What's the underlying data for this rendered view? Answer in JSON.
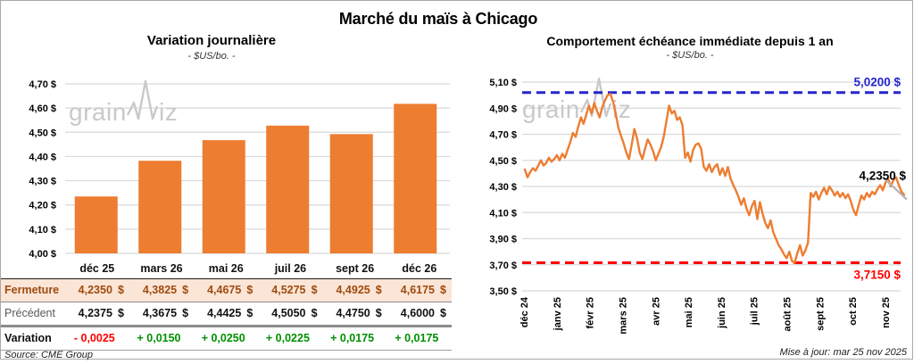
{
  "title": "Marché du maïs à Chicago",
  "source": "Source: CME Group",
  "updated": "Mise à jour: mar 25 nov 2025",
  "watermark": {
    "part1": "grain",
    "part2": "iz"
  },
  "colors": {
    "bar_orange": "#ED7D31",
    "grid": "#DADADA",
    "high_blue": "#2525CE",
    "low_red": "#FF0000",
    "positive_green": "#009000",
    "negative_red": "#FF0000",
    "close_row_bg": "#FBE5D6",
    "close_row_text": "#9E4B0F",
    "prev_label_gray": "#595959",
    "watermark_gray": "#C9C9C9"
  },
  "table": {
    "columns": [
      "déc 25",
      "mars 26",
      "mai 26",
      "juil 26",
      "sept 26",
      "déc 26"
    ],
    "rows": [
      {
        "key": "close",
        "label": "Fermeture",
        "values": [
          "4,2350 $",
          "4,3825 $",
          "4,4675 $",
          "4,5275 $",
          "4,4925 $",
          "4,6175 $"
        ]
      },
      {
        "key": "prev",
        "label": "Précédent",
        "values": [
          "4,2375 $",
          "4,3675 $",
          "4,4425 $",
          "4,5050 $",
          "4,4750 $",
          "4,6000 $"
        ]
      },
      {
        "key": "var",
        "label": "Variation",
        "values": [
          "- 0,0025",
          "+ 0,0150",
          "+ 0,0250",
          "+ 0,0225",
          "+ 0,0175",
          "+ 0,0175"
        ],
        "signs": [
          "neg",
          "pos",
          "pos",
          "pos",
          "pos",
          "pos"
        ]
      }
    ]
  },
  "chart_data": [
    {
      "type": "bar",
      "title": "Variation journalière",
      "subtitle": "- $US/bo. -",
      "categories": [
        "déc 25",
        "mars 26",
        "mai 26",
        "juil 26",
        "sept 26",
        "déc 26"
      ],
      "values": [
        4.235,
        4.3825,
        4.4675,
        4.5275,
        4.4925,
        4.6175
      ],
      "ylim": [
        4.0,
        4.7
      ],
      "ytick_step": 0.1,
      "ytick_labels": [
        "4,70 $",
        "4,60 $",
        "4,50 $",
        "4,40 $",
        "4,30 $",
        "4,20 $",
        "4,10 $",
        "4,00 $"
      ],
      "grid": true,
      "bar_color": "#ED7D31"
    },
    {
      "type": "line",
      "title": "Comportement échéance immédiate depuis 1 an",
      "subtitle": "- $US/bo. -",
      "x_tick_labels": [
        "déc 24",
        "janv 25",
        "févr 25",
        "mars 25",
        "avr 25",
        "mai 25",
        "juin 25",
        "juil 25",
        "août 25",
        "sept 25",
        "oct 25",
        "nov 25"
      ],
      "ylim": [
        3.5,
        5.1
      ],
      "ytick_step": 0.2,
      "ytick_labels": [
        "5,10 $",
        "4,90 $",
        "4,70 $",
        "4,50 $",
        "4,30 $",
        "4,10 $",
        "3,90 $",
        "3,70 $",
        "3,50 $"
      ],
      "grid": true,
      "line_color": "#ED7D31",
      "high_line": {
        "value": 5.02,
        "label": "5,0200 $",
        "color": "#2525CE"
      },
      "low_line": {
        "value": 3.715,
        "label": "3,7150 $",
        "color": "#FF0000"
      },
      "last_point": {
        "value": 4.235,
        "label": "4,2350 $"
      },
      "values": [
        4.43,
        4.37,
        4.41,
        4.44,
        4.42,
        4.46,
        4.5,
        4.46,
        4.48,
        4.52,
        4.49,
        4.51,
        4.54,
        4.5,
        4.55,
        4.52,
        4.58,
        4.64,
        4.71,
        4.68,
        4.76,
        4.83,
        4.78,
        4.85,
        4.92,
        4.86,
        4.94,
        4.88,
        4.83,
        4.91,
        4.96,
        5.0,
        5.01,
        4.95,
        4.86,
        4.75,
        4.69,
        4.63,
        4.56,
        4.51,
        4.62,
        4.74,
        4.67,
        4.56,
        4.51,
        4.59,
        4.66,
        4.62,
        4.57,
        4.5,
        4.55,
        4.6,
        4.68,
        4.8,
        4.92,
        4.86,
        4.88,
        4.81,
        4.83,
        4.77,
        4.52,
        4.56,
        4.49,
        4.58,
        4.62,
        4.63,
        4.59,
        4.45,
        4.42,
        4.47,
        4.41,
        4.45,
        4.47,
        4.39,
        4.44,
        4.38,
        4.45,
        4.36,
        4.31,
        4.27,
        4.22,
        4.16,
        4.21,
        4.13,
        4.08,
        4.15,
        4.19,
        4.05,
        4.18,
        4.09,
        4.02,
        3.98,
        4.04,
        3.95,
        3.9,
        3.85,
        3.82,
        3.78,
        3.75,
        3.8,
        3.73,
        3.715,
        3.79,
        3.85,
        3.77,
        3.81,
        3.87,
        4.25,
        4.22,
        4.26,
        4.2,
        4.25,
        4.29,
        4.24,
        4.3,
        4.27,
        4.23,
        4.26,
        4.22,
        4.25,
        4.21,
        4.24,
        4.19,
        4.12,
        4.08,
        4.16,
        4.23,
        4.2,
        4.25,
        4.22,
        4.26,
        4.24,
        4.28,
        4.31,
        4.27,
        4.33,
        4.36,
        4.3,
        4.35,
        4.37,
        4.31,
        4.26,
        4.235
      ]
    }
  ]
}
